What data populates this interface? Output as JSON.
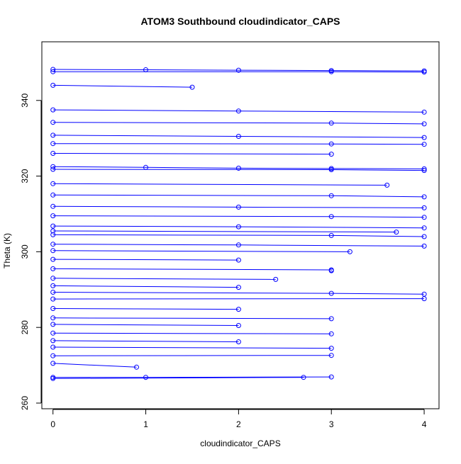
{
  "chart_data": {
    "type": "line",
    "title": "ATOM3 Southbound cloudindicator_CAPS",
    "xlabel": "cloudindicator_CAPS",
    "ylabel": "Theta (K)",
    "xlim": [
      -0.12,
      4.16
    ],
    "ylim": [
      258.5,
      355.5
    ],
    "xticks": [
      0,
      1,
      2,
      3,
      4
    ],
    "yticks": [
      260,
      280,
      300,
      320,
      340
    ],
    "grid": false,
    "series_color": "#0000ff",
    "marker": "open-circle",
    "profiles": [
      {
        "theta": [
          348.2,
          348.1,
          348.0,
          347.9,
          347.8
        ],
        "x": [
          0,
          1,
          2,
          3,
          4
        ]
      },
      {
        "theta": [
          347.6,
          347.6,
          347.5
        ],
        "x": [
          0,
          3,
          4
        ]
      },
      {
        "theta": [
          322.5,
          322.3,
          322.1,
          322.0,
          321.9
        ],
        "x": [
          0,
          1,
          2,
          3,
          4
        ]
      },
      {
        "theta": [
          321.8,
          321.7,
          321.5
        ],
        "x": [
          0,
          3,
          4
        ]
      },
      {
        "theta": [
          337.5,
          337.2,
          336.9
        ],
        "x": [
          0,
          2,
          4
        ]
      },
      {
        "theta": [
          334.2,
          334.0,
          333.8
        ],
        "x": [
          0,
          3,
          4
        ]
      },
      {
        "theta": [
          330.8,
          330.5,
          330.2
        ],
        "x": [
          0,
          2,
          4
        ]
      },
      {
        "theta": [
          328.6,
          328.5,
          328.4
        ],
        "x": [
          0,
          3,
          4
        ]
      },
      {
        "theta": [
          315.0,
          314.8,
          314.5
        ],
        "x": [
          0,
          3,
          4
        ]
      },
      {
        "theta": [
          312.0,
          311.8,
          311.6
        ],
        "x": [
          0,
          2,
          4
        ]
      },
      {
        "theta": [
          309.5,
          309.3,
          309.1
        ],
        "x": [
          0,
          3,
          4
        ]
      },
      {
        "theta": [
          306.8,
          306.6,
          306.3
        ],
        "x": [
          0,
          2,
          4
        ]
      },
      {
        "theta": [
          304.5,
          304.3,
          304.0
        ],
        "x": [
          0,
          3,
          4
        ]
      },
      {
        "theta": [
          302.0,
          301.8,
          301.5
        ],
        "x": [
          0,
          2,
          4
        ]
      },
      {
        "theta": [
          298.0,
          297.8
        ],
        "x": [
          0,
          2
        ]
      },
      {
        "theta": [
          295.5,
          295.2,
          295.0
        ],
        "x": [
          0,
          3,
          3
        ]
      },
      {
        "theta": [
          291.0,
          290.6
        ],
        "x": [
          0,
          2
        ]
      },
      {
        "theta": [
          289.3,
          289.0,
          288.8
        ],
        "x": [
          0,
          3,
          4
        ]
      },
      {
        "theta": [
          287.5,
          287.6
        ],
        "x": [
          0,
          4
        ]
      },
      {
        "theta": [
          285.0,
          284.8
        ],
        "x": [
          0,
          2
        ]
      },
      {
        "theta": [
          282.5,
          282.3
        ],
        "x": [
          0,
          3
        ]
      },
      {
        "theta": [
          280.8,
          280.5
        ],
        "x": [
          0,
          2
        ]
      },
      {
        "theta": [
          278.5,
          278.3
        ],
        "x": [
          0,
          3
        ]
      },
      {
        "theta": [
          276.5,
          276.2
        ],
        "x": [
          0,
          2
        ]
      },
      {
        "theta": [
          274.8,
          274.5
        ],
        "x": [
          0,
          3
        ]
      },
      {
        "theta": [
          272.5,
          272.6
        ],
        "x": [
          0,
          3
        ]
      },
      {
        "theta": [
          270.5,
          269.5
        ],
        "x": [
          0,
          0.9
        ]
      },
      {
        "theta": [
          266.8,
          266.8,
          266.9
        ],
        "x": [
          0,
          1,
          3
        ]
      },
      {
        "theta": [
          266.5,
          266.8
        ],
        "x": [
          0,
          2.7
        ]
      },
      {
        "theta": [
          344.0,
          343.5
        ],
        "x": [
          0,
          1.5
        ]
      },
      {
        "theta": [
          326.0,
          325.8
        ],
        "x": [
          0,
          3
        ]
      },
      {
        "theta": [
          318.0,
          317.6
        ],
        "x": [
          0,
          3.6
        ]
      },
      {
        "theta": [
          305.5,
          305.2
        ],
        "x": [
          0,
          3.7
        ]
      },
      {
        "theta": [
          300.3,
          300.0
        ],
        "x": [
          0,
          3.2
        ]
      },
      {
        "theta": [
          293.0,
          292.7
        ],
        "x": [
          0,
          2.4
        ]
      }
    ]
  }
}
